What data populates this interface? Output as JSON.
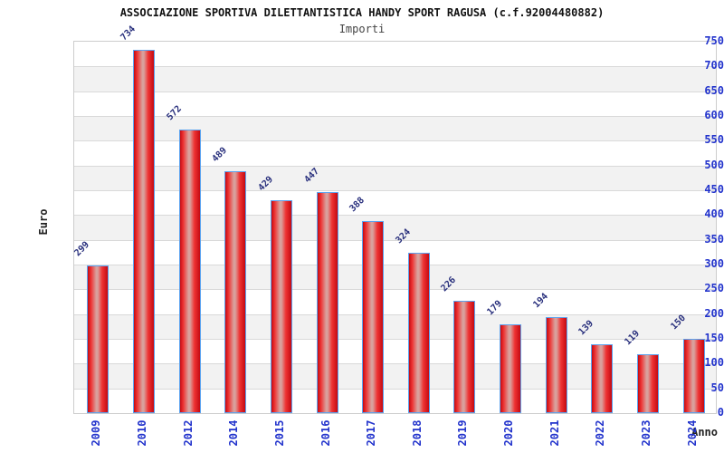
{
  "chart_data": {
    "type": "bar",
    "title": "ASSOCIAZIONE SPORTIVA DILETTANTISTICA HANDY SPORT RAGUSA (c.f.92004480882)",
    "subtitle": "Importi",
    "xlabel": "Anno",
    "ylabel": "Euro",
    "categories": [
      "2009",
      "2010",
      "2012",
      "2014",
      "2015",
      "2016",
      "2017",
      "2018",
      "2019",
      "2020",
      "2021",
      "2022",
      "2023",
      "2024"
    ],
    "values": [
      299,
      734,
      572,
      489,
      429,
      447,
      388,
      324,
      226,
      179,
      194,
      139,
      119,
      150
    ],
    "ylim": [
      0,
      750
    ],
    "ytick_step": 50,
    "grid": "horizontal-bands-and-lines",
    "legend": "none",
    "bar_value_labels_rotation_deg": -45,
    "x_tick_rotation_deg": -90,
    "colors": {
      "bar-edge": "#c40a12",
      "bar-mid": "#ee3333",
      "bar-highlight": "#d9a09c",
      "bar-border": "#5ba3f0",
      "tick-color": "#2233cc",
      "value-color": "#29307d",
      "title-color": "#111111",
      "subtitle-color": "#444444",
      "axis-title-color": "#222222",
      "band-color": "#f2f2f2",
      "gridline-color": "#d9d9d9",
      "plot-border": "#cccccc"
    }
  }
}
